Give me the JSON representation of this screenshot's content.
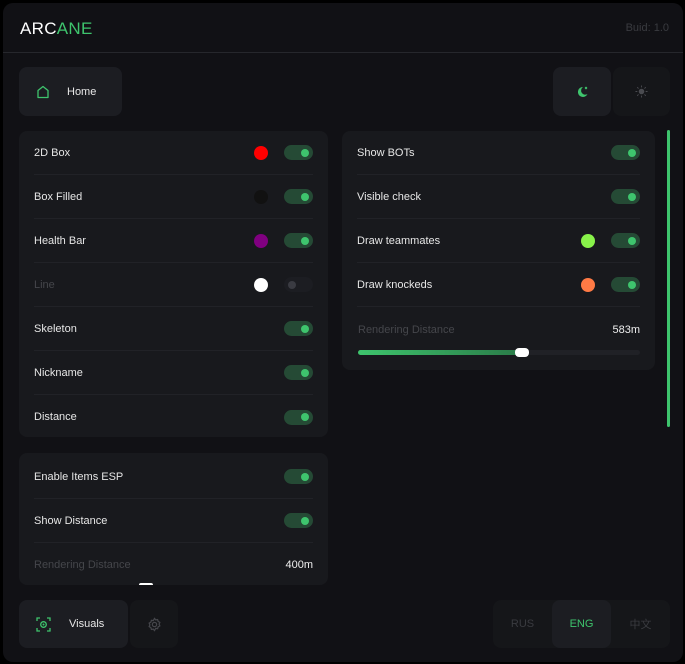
{
  "header": {
    "logo_a": "ARC",
    "logo_b": "ANE",
    "build": "Buid: 1.0"
  },
  "nav": {
    "home": "Home",
    "visuals": "Visuals"
  },
  "theme": {
    "dark_icon": "moon-icon",
    "light_icon": "sun-icon",
    "active": "dark"
  },
  "players": {
    "rows": [
      {
        "label": "2D Box",
        "color": "#ff0000",
        "on": true
      },
      {
        "label": "Box Filled",
        "color": "#111111",
        "on": true
      },
      {
        "label": "Health Bar",
        "color": "#800080",
        "on": true
      },
      {
        "label": "Line",
        "color": "#ffffff",
        "on": false
      },
      {
        "label": "Skeleton",
        "on": true
      },
      {
        "label": "Nickname",
        "on": true
      },
      {
        "label": "Distance",
        "on": true
      }
    ]
  },
  "extra": {
    "rows": [
      {
        "label": "Show BOTs",
        "on": true
      },
      {
        "label": "Visible check",
        "on": true
      },
      {
        "label": "Draw teammates",
        "color": "#88f24a",
        "on": true
      },
      {
        "label": "Draw knockeds",
        "color": "#ff7a45",
        "on": true
      }
    ],
    "distance_label": "Rendering Distance",
    "distance_value": "583m",
    "distance_fraction": 0.583
  },
  "items": {
    "rows": [
      {
        "label": "Enable Items ESP",
        "on": true
      },
      {
        "label": "Show Distance",
        "on": true
      }
    ],
    "distance_label": "Rendering Distance",
    "distance_value": "400m",
    "distance_fraction": 0.4
  },
  "languages": {
    "items": [
      "RUS",
      "ENG",
      "中文"
    ],
    "active": "ENG"
  },
  "accent": "#3ec46d"
}
